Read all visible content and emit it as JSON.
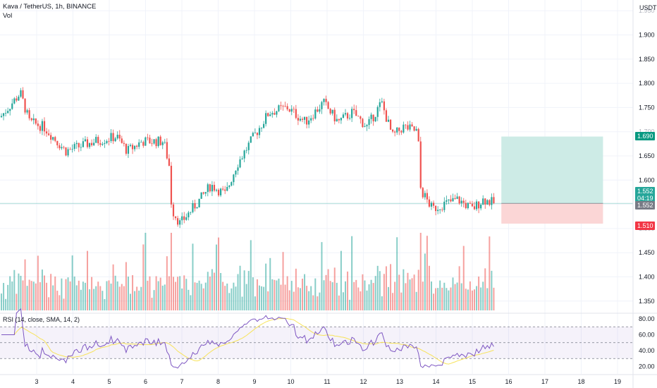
{
  "header": {
    "symbol_line": "Kava / TetherUS, 1h, BINANCE",
    "vol_label": "Vol"
  },
  "price_axis": {
    "unit": "USDT",
    "ticks": [
      "1.950",
      "1.900",
      "1.850",
      "1.800",
      "1.750",
      "1.700",
      "1.650",
      "1.600",
      "1.550",
      "1.500",
      "1.450",
      "1.400",
      "1.350"
    ]
  },
  "tags": {
    "target": {
      "value": "1.690",
      "color": "#089981"
    },
    "current": {
      "value": "1.552",
      "countdown": "04:19",
      "color": "#26a69a"
    },
    "entry": {
      "value": "1.552",
      "color": "#787b86"
    },
    "stop": {
      "value": "1.510",
      "color": "#f23645"
    }
  },
  "rsi": {
    "title": "RSI (14, close, SMA, 14, 2)",
    "ticks": [
      "80.00",
      "60.00",
      "40.00",
      "20.00"
    ]
  },
  "time_axis": {
    "labels": [
      "3",
      "4",
      "5",
      "6",
      "7",
      "8",
      "9",
      "10",
      "11",
      "12",
      "13",
      "14",
      "15",
      "16",
      "17",
      "18",
      "19"
    ]
  },
  "colors": {
    "up": "#26a69a",
    "down": "#ef5350",
    "rsi_line": "#7e57c2",
    "rsi_ma": "#f7e35a",
    "profit_zone": "#cdebe6",
    "loss_zone": "#fbd6d6"
  },
  "chart_data": {
    "type": "candlestick",
    "title": "Kava / TetherUS, 1h, BINANCE",
    "ylim": [
      1.32,
      1.96
    ],
    "anchors": [
      {
        "day": 2.0,
        "close": 1.73
      },
      {
        "day": 2.55,
        "close": 1.78
      },
      {
        "day": 2.8,
        "close": 1.72
      },
      {
        "day": 3.2,
        "close": 1.71
      },
      {
        "day": 3.8,
        "close": 1.66
      },
      {
        "day": 4.6,
        "close": 1.68
      },
      {
        "day": 5.2,
        "close": 1.69
      },
      {
        "day": 5.5,
        "close": 1.66
      },
      {
        "day": 5.9,
        "close": 1.68
      },
      {
        "day": 6.5,
        "close": 1.68
      },
      {
        "day": 6.65,
        "close": 1.63
      },
      {
        "day": 6.72,
        "close": 1.54
      },
      {
        "day": 6.95,
        "close": 1.51
      },
      {
        "day": 7.5,
        "close": 1.56
      },
      {
        "day": 7.8,
        "close": 1.59
      },
      {
        "day": 8.2,
        "close": 1.57
      },
      {
        "day": 8.5,
        "close": 1.63
      },
      {
        "day": 8.9,
        "close": 1.68
      },
      {
        "day": 9.4,
        "close": 1.74
      },
      {
        "day": 9.9,
        "close": 1.75
      },
      {
        "day": 10.4,
        "close": 1.72
      },
      {
        "day": 10.9,
        "close": 1.76
      },
      {
        "day": 11.3,
        "close": 1.72
      },
      {
        "day": 11.7,
        "close": 1.74
      },
      {
        "day": 12.1,
        "close": 1.71
      },
      {
        "day": 12.5,
        "close": 1.76
      },
      {
        "day": 12.8,
        "close": 1.69
      },
      {
        "day": 13.1,
        "close": 1.71
      },
      {
        "day": 13.5,
        "close": 1.7
      },
      {
        "day": 13.58,
        "close": 1.58
      },
      {
        "day": 13.9,
        "close": 1.54
      },
      {
        "day": 14.2,
        "close": 1.55
      },
      {
        "day": 14.6,
        "close": 1.56
      },
      {
        "day": 15.0,
        "close": 1.54
      },
      {
        "day": 15.3,
        "close": 1.56
      },
      {
        "day": 15.62,
        "close": 1.552
      }
    ],
    "position": {
      "entry": 1.552,
      "target": 1.69,
      "stop": 1.51,
      "start_day": 15.8,
      "end_day": 18.6
    },
    "volume_scale": "relative",
    "rsi": {
      "period": 14,
      "source": "close",
      "ma": "SMA",
      "ma_period": 14,
      "levels": [
        70,
        50,
        30
      ],
      "ylim": [
        10,
        90
      ]
    }
  }
}
